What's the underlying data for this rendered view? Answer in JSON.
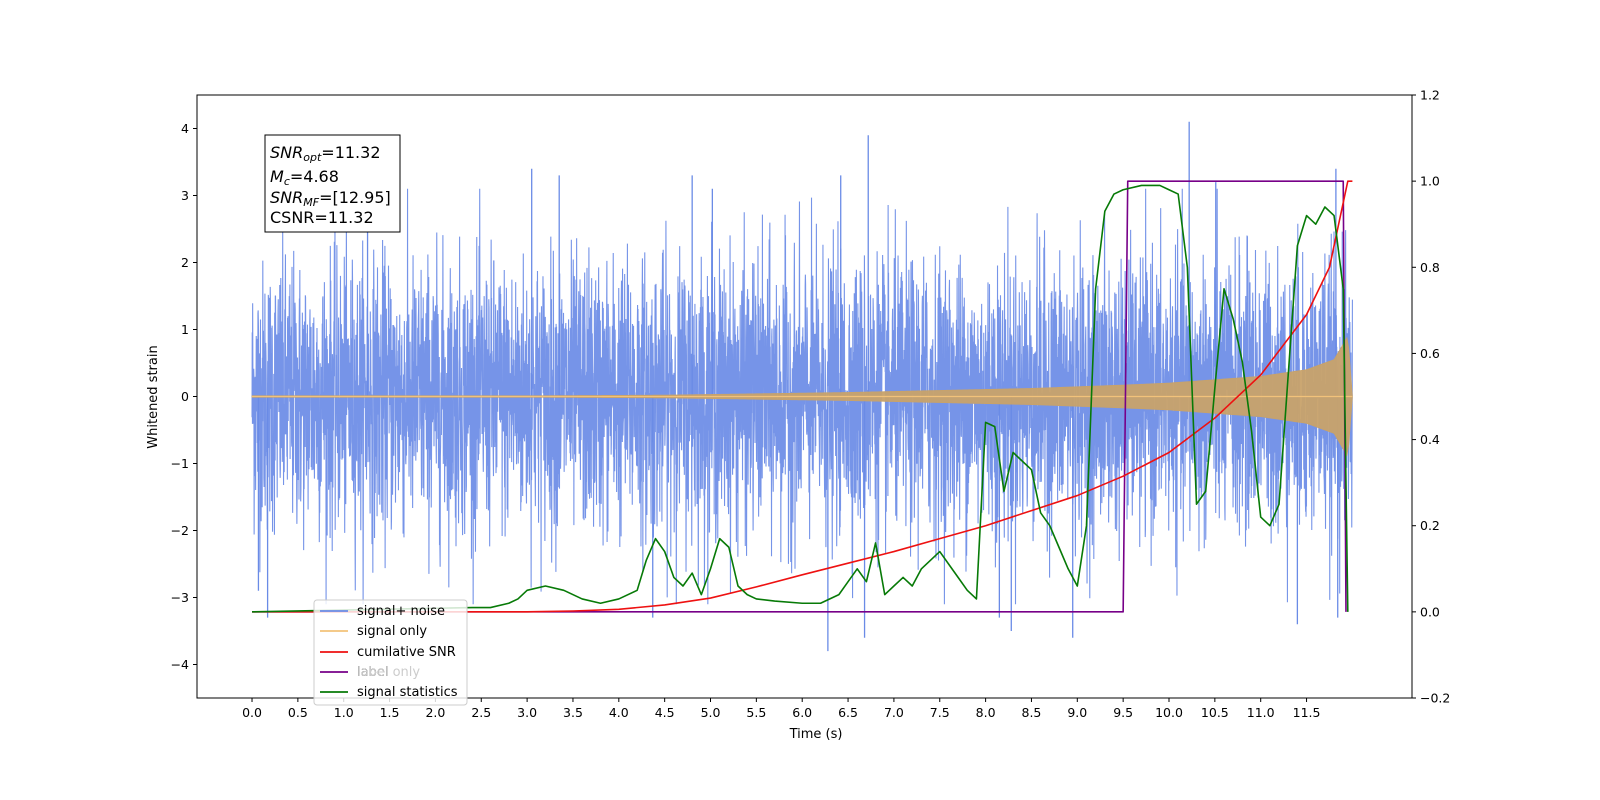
{
  "chart_data": {
    "type": "line",
    "xlabel": "Time (s)",
    "ylabel": "Whitened strain",
    "xlim": [
      -0.6,
      12.65
    ],
    "ylim": [
      -4.5,
      4.5
    ],
    "y2lim": [
      -0.2,
      1.2
    ],
    "xticks": [
      "0.0",
      "0.5",
      "1.0",
      "1.5",
      "2.0",
      "2.5",
      "3.0",
      "3.5",
      "4.0",
      "4.5",
      "5.0",
      "5.5",
      "6.0",
      "6.5",
      "7.0",
      "7.5",
      "8.0",
      "8.5",
      "9.0",
      "9.5",
      "10.0",
      "10.5",
      "11.0",
      "11.5"
    ],
    "yticks": [
      "−4",
      "−3",
      "−2",
      "−1",
      "0",
      "1",
      "2",
      "3",
      "4"
    ],
    "y2ticks": [
      "−0.2",
      "0.0",
      "0.2",
      "0.4",
      "0.6",
      "0.8",
      "1.0",
      "1.2"
    ],
    "grid": false,
    "legend_position": "lower-left",
    "annotation": {
      "snr_opt_label": "SNR",
      "snr_opt_sub": "opt",
      "snr_opt_value": "=11.32",
      "mc_label": "M",
      "mc_sub": "c",
      "mc_value": "=4.68",
      "snr_mf_label": "SNR",
      "snr_mf_sub": "MF",
      "snr_mf_value": "=[12.95]",
      "csnr_text": "CSNR=11.32"
    },
    "series": [
      {
        "name": "signal+ noise",
        "axis": "left",
        "color": "#6a8be6",
        "x_range": [
          0.0,
          12.0
        ],
        "noise_std": 1.0,
        "extreme_spikes": [
          [
            0.07,
            -2.9
          ],
          [
            0.17,
            -3.3
          ],
          [
            1.26,
            3.0
          ],
          [
            3.05,
            3.4
          ],
          [
            3.35,
            3.3
          ],
          [
            4.37,
            -3.3
          ],
          [
            4.8,
            3.3
          ],
          [
            5.02,
            3.1
          ],
          [
            6.28,
            -3.8
          ],
          [
            6.42,
            3.3
          ],
          [
            6.72,
            3.9
          ],
          [
            6.68,
            -3.6
          ],
          [
            8.15,
            -3.3
          ],
          [
            8.28,
            -3.5
          ],
          [
            8.95,
            -3.6
          ],
          [
            10.22,
            4.1
          ],
          [
            10.51,
            3.2
          ],
          [
            11.4,
            -3.4
          ],
          [
            11.82,
            3.4
          ],
          [
            11.84,
            -3.3
          ]
        ]
      },
      {
        "name": "signal only",
        "axis": "left",
        "color": "#c8a26a",
        "x_range": [
          0.0,
          12.0
        ],
        "envelope": [
          [
            0.0,
            0.01
          ],
          [
            3.0,
            0.01
          ],
          [
            4.5,
            0.02
          ],
          [
            5.5,
            0.04
          ],
          [
            6.5,
            0.06
          ],
          [
            7.5,
            0.09
          ],
          [
            8.5,
            0.12
          ],
          [
            9.5,
            0.17
          ],
          [
            10.0,
            0.2
          ],
          [
            10.5,
            0.25
          ],
          [
            11.0,
            0.3
          ],
          [
            11.5,
            0.4
          ],
          [
            11.8,
            0.55
          ],
          [
            11.95,
            0.9
          ],
          [
            12.0,
            0.0
          ]
        ]
      },
      {
        "name": "cumilative SNR",
        "axis": "right",
        "color": "#ee1111",
        "x": [
          0.0,
          2.0,
          3.0,
          3.5,
          4.0,
          4.5,
          5.0,
          5.5,
          6.0,
          6.5,
          7.0,
          7.5,
          8.0,
          8.5,
          9.0,
          9.5,
          10.0,
          10.5,
          11.0,
          11.5,
          11.75,
          11.95,
          12.0
        ],
        "values": [
          0.0,
          0.0,
          0.0,
          0.002,
          0.006,
          0.016,
          0.032,
          0.058,
          0.086,
          0.113,
          0.14,
          0.17,
          0.2,
          0.235,
          0.27,
          0.315,
          0.37,
          0.45,
          0.55,
          0.69,
          0.8,
          1.0,
          1.0
        ]
      },
      {
        "name": "label",
        "axis": "right",
        "color": "#770088",
        "x": [
          0.0,
          9.5,
          9.55,
          11.9,
          11.93,
          11.93
        ],
        "values": [
          0.0,
          0.0,
          1.0,
          1.0,
          0.0,
          0.0
        ]
      },
      {
        "name": "label only",
        "axis": "right",
        "color": "#cccccc",
        "x": [],
        "values": []
      },
      {
        "name": "signal statistics",
        "axis": "right",
        "color": "#077a07",
        "x": [
          0.0,
          2.4,
          2.6,
          2.8,
          2.9,
          3.0,
          3.2,
          3.4,
          3.6,
          3.8,
          4.0,
          4.2,
          4.3,
          4.4,
          4.5,
          4.6,
          4.7,
          4.8,
          4.9,
          5.0,
          5.1,
          5.2,
          5.3,
          5.4,
          5.5,
          5.7,
          6.0,
          6.2,
          6.4,
          6.5,
          6.6,
          6.7,
          6.8,
          6.9,
          7.0,
          7.1,
          7.2,
          7.3,
          7.4,
          7.5,
          7.6,
          7.7,
          7.8,
          7.9,
          8.0,
          8.1,
          8.2,
          8.3,
          8.4,
          8.5,
          8.6,
          8.7,
          8.8,
          8.9,
          9.0,
          9.1,
          9.2,
          9.3,
          9.4,
          9.5,
          9.7,
          9.9,
          10.0,
          10.1,
          10.2,
          10.3,
          10.4,
          10.5,
          10.6,
          10.7,
          10.8,
          10.9,
          11.0,
          11.1,
          11.2,
          11.3,
          11.4,
          11.5,
          11.6,
          11.7,
          11.8,
          11.9,
          11.95
        ],
        "values": [
          0.0,
          0.01,
          0.01,
          0.02,
          0.03,
          0.05,
          0.06,
          0.05,
          0.03,
          0.02,
          0.03,
          0.05,
          0.12,
          0.17,
          0.14,
          0.08,
          0.06,
          0.09,
          0.04,
          0.1,
          0.17,
          0.15,
          0.06,
          0.04,
          0.03,
          0.025,
          0.02,
          0.02,
          0.04,
          0.07,
          0.1,
          0.07,
          0.16,
          0.04,
          0.06,
          0.08,
          0.06,
          0.1,
          0.12,
          0.14,
          0.11,
          0.08,
          0.05,
          0.03,
          0.44,
          0.43,
          0.28,
          0.37,
          0.35,
          0.33,
          0.23,
          0.2,
          0.15,
          0.1,
          0.06,
          0.2,
          0.75,
          0.93,
          0.97,
          0.98,
          0.99,
          0.99,
          0.98,
          0.97,
          0.8,
          0.25,
          0.28,
          0.52,
          0.75,
          0.68,
          0.58,
          0.42,
          0.22,
          0.2,
          0.25,
          0.55,
          0.85,
          0.92,
          0.9,
          0.94,
          0.92,
          0.75,
          0.0
        ]
      }
    ]
  }
}
